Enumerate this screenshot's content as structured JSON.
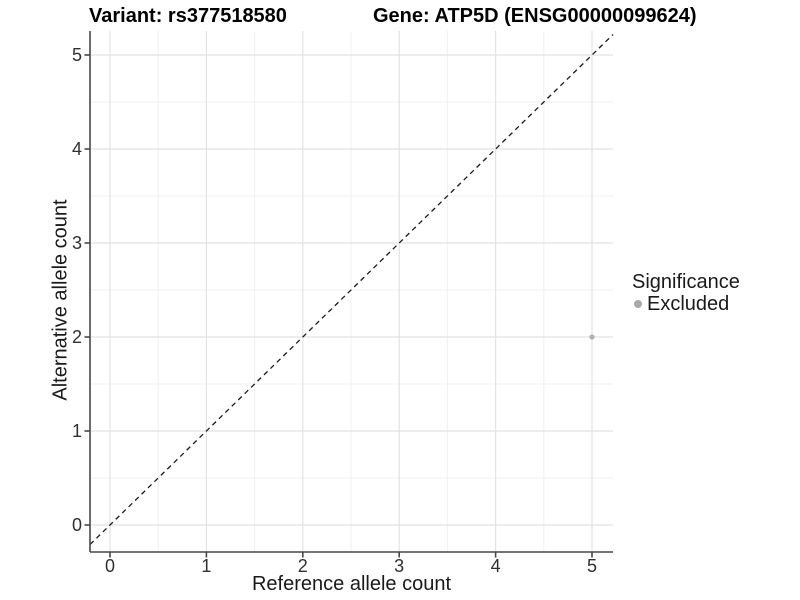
{
  "chart_data": {
    "type": "scatter",
    "title_left": "Variant: rs377518580",
    "title_right": "Gene: ATP5D (ENSG00000099624)",
    "xlabel": "Reference allele count",
    "ylabel": "Alternative allele count",
    "xticks": [
      0,
      1,
      2,
      3,
      4,
      5
    ],
    "yticks": [
      0,
      1,
      2,
      3,
      4,
      5
    ],
    "xlim": [
      -0.21,
      5.22
    ],
    "ylim": [
      -0.21,
      5.22
    ],
    "grid": {
      "major": true,
      "minor": true,
      "major_color": "#e2e2e2",
      "minor_color": "#f0f0f0"
    },
    "reference_line": {
      "kind": "identity",
      "style": "dashed",
      "color": "#1a1a1a"
    },
    "series": [
      {
        "name": "Excluded",
        "color": "#b2b2b2",
        "points": [
          {
            "x": 5,
            "y": 2
          }
        ]
      }
    ],
    "legend": {
      "title": "Significance",
      "position": "right",
      "items": [
        {
          "label": "Excluded",
          "color": "#a9a9a9",
          "marker": "circle"
        }
      ]
    }
  },
  "colors": {
    "background": "#ffffff",
    "axis_line": "#474747",
    "tick_label": "#303030",
    "title_text": "#000000"
  }
}
